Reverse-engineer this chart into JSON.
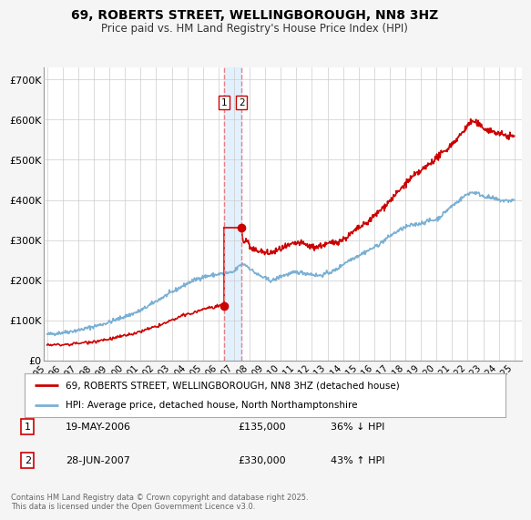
{
  "title": "69, ROBERTS STREET, WELLINGBOROUGH, NN8 3HZ",
  "subtitle": "Price paid vs. HM Land Registry's House Price Index (HPI)",
  "ylim": [
    0,
    730000
  ],
  "yticks": [
    0,
    100000,
    200000,
    300000,
    400000,
    500000,
    600000,
    700000
  ],
  "ytick_labels": [
    "£0",
    "£100K",
    "£200K",
    "£300K",
    "£400K",
    "£500K",
    "£600K",
    "£700K"
  ],
  "legend_line1": "69, ROBERTS STREET, WELLINGBOROUGH, NN8 3HZ (detached house)",
  "legend_line2": "HPI: Average price, detached house, North Northamptonshire",
  "line_color_red": "#cc0000",
  "line_color_blue": "#7ab0d4",
  "vline_color": "#e88080",
  "shade_color": "#ddeeff",
  "transaction1_label": "1",
  "transaction1_date": "19-MAY-2006",
  "transaction1_price": "£135,000",
  "transaction1_hpi": "36% ↓ HPI",
  "transaction2_label": "2",
  "transaction2_date": "28-JUN-2007",
  "transaction2_price": "£330,000",
  "transaction2_hpi": "43% ↑ HPI",
  "vline1_x": 2006.38,
  "vline2_x": 2007.49,
  "marker1_x": 2006.38,
  "marker1_y": 135000,
  "marker2_x": 2007.49,
  "marker2_y": 330000,
  "footer": "Contains HM Land Registry data © Crown copyright and database right 2025.\nThis data is licensed under the Open Government Licence v3.0.",
  "background_color": "#f5f5f5",
  "plot_bg_color": "#ffffff",
  "grid_color": "#cccccc",
  "xlim_left": 1994.8,
  "xlim_right": 2025.5
}
